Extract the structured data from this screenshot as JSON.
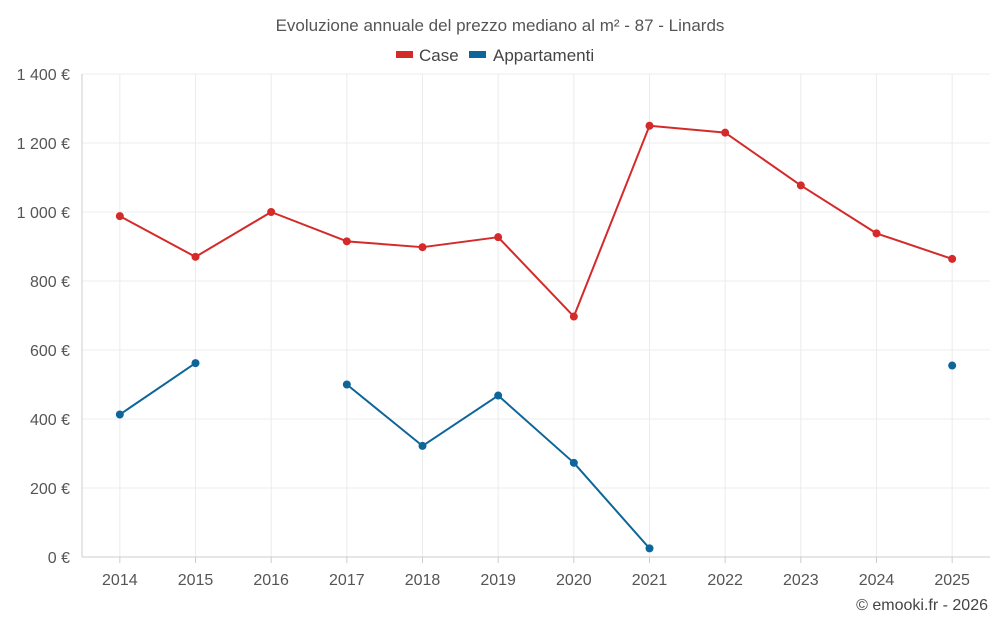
{
  "chart_data": {
    "type": "line",
    "title": "Evoluzione annuale del prezzo mediano al m² - 87 - Linards",
    "categories": [
      "2014",
      "2015",
      "2016",
      "2017",
      "2018",
      "2019",
      "2020",
      "2021",
      "2022",
      "2023",
      "2024",
      "2025"
    ],
    "y_tick_labels": [
      "0 €",
      "200 €",
      "400 €",
      "600 €",
      "800 €",
      "1 000 €",
      "1 200 €",
      "1 400 €"
    ],
    "ylim": [
      0,
      1400
    ],
    "y_tick_step": 200,
    "grid": true,
    "legend_position": "top-center",
    "series": [
      {
        "name": "Case",
        "color": "#d42a2a",
        "values": [
          988,
          870,
          1000,
          915,
          898,
          927,
          697,
          1250,
          1230,
          1077,
          938,
          864
        ]
      },
      {
        "name": "Appartamenti",
        "color": "#0e6599",
        "values": [
          413,
          562,
          null,
          500,
          322,
          468,
          273,
          25,
          null,
          null,
          null,
          555
        ]
      }
    ],
    "credit": "© emooki.fr - 2026"
  }
}
